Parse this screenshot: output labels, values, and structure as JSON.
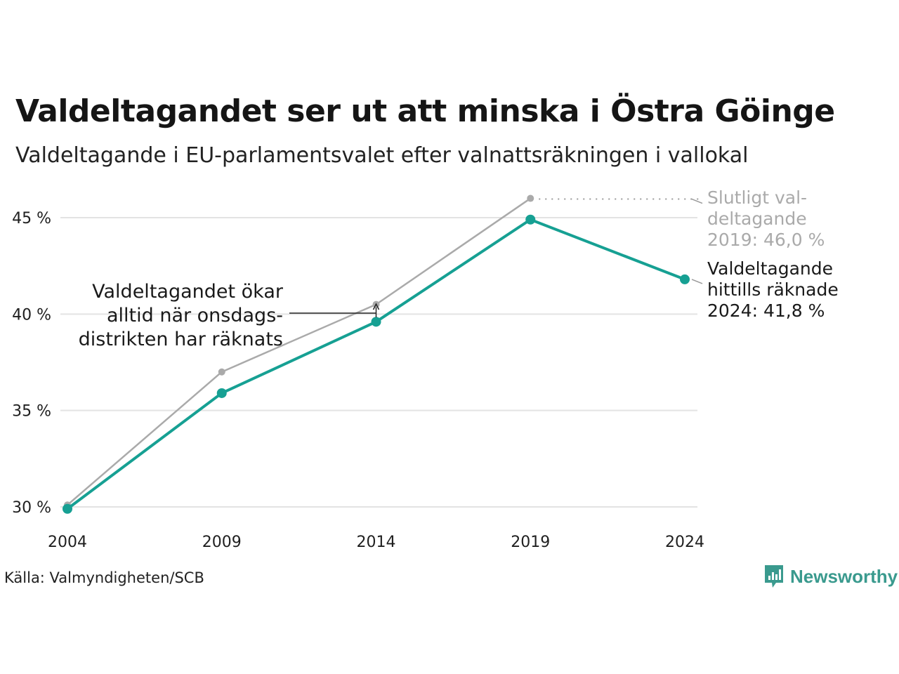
{
  "title": "Valdeltagandet ser ut att minska i Östra Göinge",
  "subtitle": "Valdeltagande i EU-parlamentsvalet efter valnattsräkningen i vallokal",
  "source": "Källa: Valmyndigheten/SCB",
  "brand": {
    "name": "Newsworthy",
    "icon": "newsworthy-logo-icon"
  },
  "colors": {
    "counted": "#16a093",
    "final": "#aaaaaa",
    "grid": "#e3e3e3",
    "text": "#1f1f1f"
  },
  "chart_data": {
    "type": "line",
    "x": [
      2004,
      2009,
      2014,
      2019,
      2024
    ],
    "x_tick_labels": [
      "2004",
      "2009",
      "2014",
      "2019",
      "2024"
    ],
    "ylim": [
      30,
      46
    ],
    "y_ticks": [
      30,
      35,
      40,
      45
    ],
    "y_tick_labels": [
      "30 %",
      "35 %",
      "40 %",
      "45 %"
    ],
    "grid": true,
    "series": [
      {
        "key": "final",
        "values": [
          30.1,
          37.0,
          40.5,
          46.0,
          null
        ]
      },
      {
        "key": "counted",
        "values": [
          29.9,
          35.9,
          39.6,
          44.9,
          41.8
        ]
      }
    ],
    "annotations": {
      "final_2019": [
        "Slutligt val-",
        "deltagande",
        "2019: 46,0 %"
      ],
      "counted_2024": [
        "Valdeltagande",
        "hittills räknade",
        "2024: 41,8 %"
      ],
      "onsdags": [
        "Valdeltagandet ökar",
        "alltid när onsdags-",
        "distrikten har räknats"
      ]
    }
  }
}
